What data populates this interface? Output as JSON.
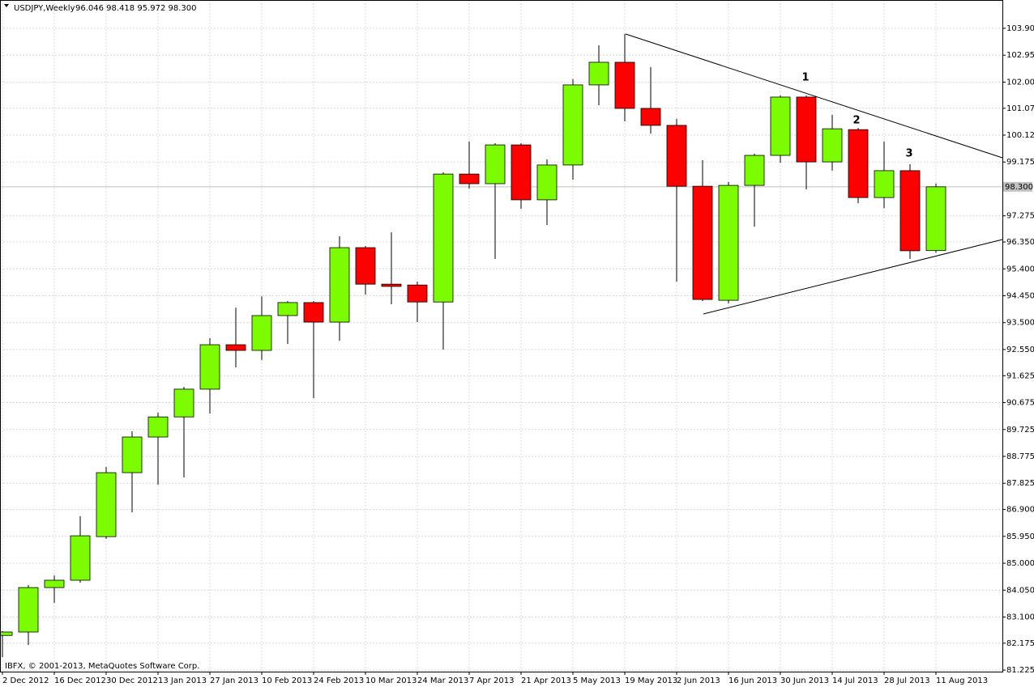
{
  "chart_data": {
    "type": "candlestick",
    "header": {
      "symbol": "USDJPY,Weekly",
      "ohlc": "96.046 98.418 95.972 98.300"
    },
    "footer": "IBFX, © 2001-2013, MetaQuotes Software Corp.",
    "categories": [
      "2 Dec 2012",
      null,
      "16 Dec 2012",
      null,
      "30 Dec 2012",
      null,
      "13 Jan 2013",
      null,
      "27 Jan 2013",
      null,
      "10 Feb 2013",
      null,
      "24 Feb 2013",
      null,
      "10 Mar 2013",
      null,
      "24 Mar 2013",
      null,
      "7 Apr 2013",
      null,
      "21 Apr 2013",
      null,
      "5 May 2013",
      null,
      "19 May 2013",
      null,
      "2 Jun 2013",
      null,
      "16 Jun 2013",
      null,
      "30 Jun 2013",
      null,
      "14 Jul 2013",
      null,
      "28 Jul 2013",
      null,
      "11 Aug 2013"
    ],
    "open": [
      82.45,
      82.57,
      84.14,
      84.4,
      85.94,
      88.2,
      89.46,
      90.17,
      91.15,
      92.72,
      92.52,
      93.75,
      94.21,
      93.52,
      96.15,
      94.86,
      94.83,
      94.23,
      98.75,
      98.41,
      99.78,
      97.84,
      99.07,
      101.9,
      102.7,
      101.07,
      100.47,
      98.32,
      94.29,
      98.35,
      99.41,
      101.47,
      99.18,
      100.32,
      97.92,
      98.87,
      96.046
    ],
    "high": [
      82.6,
      84.23,
      84.57,
      86.66,
      88.4,
      89.66,
      90.32,
      91.23,
      92.95,
      94.03,
      94.43,
      94.26,
      94.26,
      96.55,
      96.21,
      96.69,
      94.95,
      98.81,
      99.9,
      99.84,
      99.84,
      99.27,
      102.1,
      103.3,
      103.7,
      102.53,
      100.7,
      99.24,
      98.47,
      99.47,
      101.53,
      101.53,
      100.84,
      100.38,
      99.9,
      99.1,
      98.418
    ],
    "low": [
      81.68,
      82.11,
      83.6,
      84.31,
      85.86,
      86.8,
      87.77,
      88.03,
      90.29,
      91.92,
      92.18,
      92.75,
      90.83,
      92.86,
      94.49,
      94.15,
      93.52,
      92.55,
      98.24,
      95.75,
      97.52,
      96.95,
      98.55,
      101.18,
      100.61,
      100.18,
      94.95,
      94.26,
      94.18,
      96.89,
      99.15,
      98.21,
      98.87,
      97.72,
      97.55,
      95.75,
      95.972
    ],
    "close": [
      82.57,
      84.14,
      84.4,
      85.97,
      88.2,
      89.46,
      90.17,
      91.15,
      92.72,
      92.52,
      93.75,
      94.21,
      93.52,
      96.15,
      94.86,
      94.78,
      94.23,
      98.75,
      98.41,
      99.78,
      97.84,
      99.07,
      101.9,
      102.7,
      101.07,
      100.47,
      98.32,
      94.32,
      98.35,
      99.41,
      101.47,
      99.18,
      100.35,
      97.92,
      98.87,
      96.04,
      98.3
    ],
    "up_color": "#7cfc00",
    "down_color": "#ff0000",
    "current_price": {
      "value": 98.3,
      "label": "98.300"
    },
    "annotations": [
      "1",
      "2",
      "3"
    ],
    "ylim": [
      81.17,
      104.9
    ],
    "yticks": [
      {
        "value": 103.9,
        "label": "103.900"
      },
      {
        "value": 102.95,
        "label": "102.950"
      },
      {
        "value": 102,
        "label": "102.000"
      },
      {
        "value": 101.075,
        "label": "101.075"
      },
      {
        "value": 100.125,
        "label": "100.125"
      },
      {
        "value": 99.175,
        "label": "99.175"
      },
      {
        "value": 97.275,
        "label": "97.275"
      },
      {
        "value": 96.35,
        "label": "96.350"
      },
      {
        "value": 95.4,
        "label": "95.400"
      },
      {
        "value": 94.45,
        "label": "94.450"
      },
      {
        "value": 93.5,
        "label": "93.500"
      },
      {
        "value": 92.55,
        "label": "92.550"
      },
      {
        "value": 91.625,
        "label": "91.625"
      },
      {
        "value": 90.675,
        "label": "90.675"
      },
      {
        "value": 89.725,
        "label": "89.725"
      },
      {
        "value": 88.775,
        "label": "88.775"
      },
      {
        "value": 87.825,
        "label": "87.825"
      },
      {
        "value": 86.9,
        "label": "86.900"
      },
      {
        "value": 85.95,
        "label": "85.950"
      },
      {
        "value": 85,
        "label": "85.000"
      },
      {
        "value": 84.05,
        "label": "84.050"
      },
      {
        "value": 83.1,
        "label": "83.100"
      },
      {
        "value": 82.175,
        "label": "82.175"
      },
      {
        "value": 81.225,
        "label": "81.225"
      }
    ],
    "grid": true
  }
}
